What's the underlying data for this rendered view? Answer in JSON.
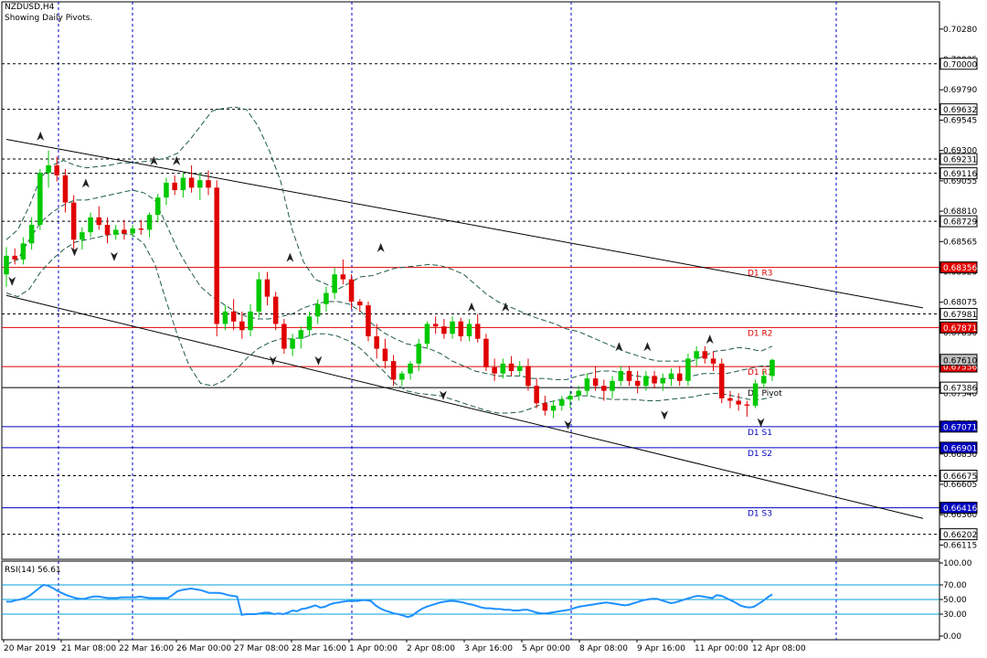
{
  "header": {
    "symbol": "NZDUSD,H4",
    "subtitle": "Showing Daily Pivots."
  },
  "rsi_panel": {
    "label": "RSI(14) 56.61",
    "levels": [
      "100.00",
      "70.00",
      "50.00",
      "30.00",
      "0.00"
    ]
  },
  "chart_data": [
    {
      "type": "candlestick",
      "symbol": "NZDUSD",
      "timeframe": "H4",
      "ylim": [
        0.66,
        0.705
      ],
      "price_ticks": [
        "0.70280",
        "0.70035",
        "0.69790",
        "0.69545",
        "0.69300",
        "0.69055",
        "0.68810",
        "0.68565",
        "0.68320",
        "0.68075",
        "0.67830",
        "0.67585",
        "0.67340",
        "0.67095",
        "0.66850",
        "0.66605",
        "0.66360",
        "0.66115"
      ],
      "time_labels": [
        "20 Mar 2019",
        "21 Mar 08:00",
        "22 Mar 16:00",
        "26 Mar 00:00",
        "27 Mar 08:00",
        "28 Mar 16:00",
        "1 Apr 00:00",
        "2 Apr 08:00",
        "3 Apr 16:00",
        "5 Apr 00:00",
        "8 Apr 08:00",
        "9 Apr 16:00",
        "11 Apr 00:00",
        "12 Apr 08:00"
      ],
      "horizontal_levels": [
        {
          "price": 0.7,
          "label": "0.70000",
          "style": "dashed"
        },
        {
          "price": 0.69632,
          "label": "0.69632",
          "style": "dashed"
        },
        {
          "price": 0.69231,
          "label": "0.69231",
          "style": "dashed"
        },
        {
          "price": 0.69116,
          "label": "0.69116",
          "style": "dashed"
        },
        {
          "price": 0.68729,
          "label": "0.68729",
          "style": "dashed"
        },
        {
          "price": 0.68356,
          "label": "0.68356",
          "style": "pivot",
          "name": "D1 R3",
          "color": "#e00000"
        },
        {
          "price": 0.67981,
          "label": "0.67981",
          "style": "dashed"
        },
        {
          "price": 0.67871,
          "label": "0.67871",
          "style": "pivot",
          "name": "D1 R2",
          "color": "#e00000"
        },
        {
          "price": 0.67556,
          "label": "0.67556",
          "style": "pivot",
          "name": "D1 R1",
          "color": "#e00000"
        },
        {
          "price": 0.67386,
          "label": "0.67386",
          "style": "pivot",
          "name": "D1 Pivot",
          "color": "#000000"
        },
        {
          "price": 0.67071,
          "label": "0.67071",
          "style": "pivot",
          "name": "D1 S1",
          "color": "#0000c0"
        },
        {
          "price": 0.66901,
          "label": "0.66901",
          "style": "pivot",
          "name": "D1 S2",
          "color": "#0000c0"
        },
        {
          "price": 0.66675,
          "label": "0.66675",
          "style": "dashed"
        },
        {
          "price": 0.66416,
          "label": "0.66416",
          "style": "pivot",
          "name": "D1 S3",
          "color": "#0000c0"
        },
        {
          "price": 0.66202,
          "label": "0.66202",
          "style": "dashed"
        }
      ],
      "current_price": {
        "price": 0.6761,
        "label": "0.67610"
      },
      "trend_channel": [
        {
          "x1": 0,
          "y1": 0.6939,
          "x2": 99,
          "y2": 0.6803
        },
        {
          "x1": 0,
          "y1": 0.6813,
          "x2": 99,
          "y2": 0.6633
        }
      ],
      "candles": [
        [
          0.683,
          0.6852,
          0.682,
          0.6845
        ],
        [
          0.6845,
          0.6851,
          0.6838,
          0.6842
        ],
        [
          0.6842,
          0.686,
          0.6838,
          0.6855
        ],
        [
          0.6855,
          0.6876,
          0.685,
          0.687
        ],
        [
          0.687,
          0.6915,
          0.6866,
          0.6912
        ],
        [
          0.6912,
          0.693,
          0.69,
          0.6918
        ],
        [
          0.6918,
          0.6925,
          0.6905,
          0.691
        ],
        [
          0.691,
          0.6915,
          0.688,
          0.6888
        ],
        [
          0.6888,
          0.6894,
          0.685,
          0.6858
        ],
        [
          0.6858,
          0.6868,
          0.685,
          0.6864
        ],
        [
          0.6864,
          0.688,
          0.686,
          0.6876
        ],
        [
          0.6876,
          0.6885,
          0.6866,
          0.687
        ],
        [
          0.687,
          0.6876,
          0.6855,
          0.6862
        ],
        [
          0.6862,
          0.687,
          0.6858,
          0.6866
        ],
        [
          0.6866,
          0.6874,
          0.6858,
          0.6863
        ],
        [
          0.6863,
          0.687,
          0.686,
          0.6867
        ],
        [
          0.6867,
          0.6874,
          0.6862,
          0.6866
        ],
        [
          0.6866,
          0.688,
          0.686,
          0.6878
        ],
        [
          0.6878,
          0.6895,
          0.6872,
          0.6892
        ],
        [
          0.6892,
          0.6908,
          0.6886,
          0.6904
        ],
        [
          0.6904,
          0.691,
          0.6894,
          0.6898
        ],
        [
          0.6898,
          0.6912,
          0.6892,
          0.6908
        ],
        [
          0.6908,
          0.6918,
          0.6896,
          0.69
        ],
        [
          0.69,
          0.6912,
          0.689,
          0.6906
        ],
        [
          0.6906,
          0.6914,
          0.6894,
          0.69
        ],
        [
          0.69,
          0.6906,
          0.678,
          0.679
        ],
        [
          0.679,
          0.6805,
          0.6785,
          0.68
        ],
        [
          0.68,
          0.681,
          0.6785,
          0.6792
        ],
        [
          0.6792,
          0.68,
          0.6778,
          0.6785
        ],
        [
          0.6785,
          0.6806,
          0.678,
          0.68
        ],
        [
          0.68,
          0.6832,
          0.6795,
          0.6826
        ],
        [
          0.6826,
          0.6832,
          0.6805,
          0.6812
        ],
        [
          0.6812,
          0.6816,
          0.6785,
          0.679
        ],
        [
          0.679,
          0.6794,
          0.6766,
          0.677
        ],
        [
          0.677,
          0.6782,
          0.6764,
          0.6778
        ],
        [
          0.6778,
          0.6788,
          0.677,
          0.6785
        ],
        [
          0.6785,
          0.68,
          0.678,
          0.6796
        ],
        [
          0.6796,
          0.681,
          0.679,
          0.6806
        ],
        [
          0.6806,
          0.682,
          0.68,
          0.6815
        ],
        [
          0.6815,
          0.6835,
          0.681,
          0.683
        ],
        [
          0.683,
          0.6842,
          0.6822,
          0.6826
        ],
        [
          0.6826,
          0.683,
          0.6802,
          0.6808
        ],
        [
          0.6808,
          0.681,
          0.68,
          0.6805
        ],
        [
          0.6805,
          0.6808,
          0.6776,
          0.678
        ],
        [
          0.678,
          0.679,
          0.6762,
          0.677
        ],
        [
          0.677,
          0.6778,
          0.6754,
          0.676
        ],
        [
          0.676,
          0.6765,
          0.674,
          0.6745
        ],
        [
          0.6745,
          0.6752,
          0.674,
          0.675
        ],
        [
          0.675,
          0.676,
          0.6745,
          0.6758
        ],
        [
          0.6758,
          0.6778,
          0.6752,
          0.6774
        ],
        [
          0.6774,
          0.6792,
          0.677,
          0.679
        ],
        [
          0.679,
          0.6796,
          0.6782,
          0.6788
        ],
        [
          0.6788,
          0.6794,
          0.6778,
          0.6782
        ],
        [
          0.6782,
          0.6796,
          0.6778,
          0.6792
        ],
        [
          0.6792,
          0.6795,
          0.6776,
          0.678
        ],
        [
          0.678,
          0.6794,
          0.6776,
          0.679
        ],
        [
          0.679,
          0.6798,
          0.6775,
          0.6778
        ],
        [
          0.6778,
          0.6782,
          0.6752,
          0.6755
        ],
        [
          0.6755,
          0.6762,
          0.6744,
          0.675
        ],
        [
          0.675,
          0.6762,
          0.6746,
          0.6758
        ],
        [
          0.6758,
          0.6764,
          0.6748,
          0.6752
        ],
        [
          0.6752,
          0.676,
          0.6748,
          0.6756
        ],
        [
          0.6756,
          0.6762,
          0.6736,
          0.674
        ],
        [
          0.674,
          0.6746,
          0.6722,
          0.6726
        ],
        [
          0.6726,
          0.6732,
          0.6716,
          0.672
        ],
        [
          0.672,
          0.6728,
          0.6714,
          0.6724
        ],
        [
          0.6724,
          0.6732,
          0.672,
          0.6729
        ],
        [
          0.6729,
          0.6736,
          0.6722,
          0.6732
        ],
        [
          0.6732,
          0.674,
          0.6728,
          0.6736
        ],
        [
          0.6736,
          0.675,
          0.6732,
          0.6746
        ],
        [
          0.6746,
          0.6756,
          0.6736,
          0.674
        ],
        [
          0.674,
          0.6745,
          0.6728,
          0.6736
        ],
        [
          0.6736,
          0.6748,
          0.673,
          0.6744
        ],
        [
          0.6744,
          0.6756,
          0.674,
          0.6752
        ],
        [
          0.6752,
          0.6756,
          0.674,
          0.6744
        ],
        [
          0.6744,
          0.6752,
          0.6734,
          0.674
        ],
        [
          0.674,
          0.6752,
          0.6736,
          0.6748
        ],
        [
          0.6748,
          0.6752,
          0.6738,
          0.6742
        ],
        [
          0.6742,
          0.675,
          0.6736,
          0.6746
        ],
        [
          0.6746,
          0.6754,
          0.674,
          0.675
        ],
        [
          0.675,
          0.6756,
          0.674,
          0.6744
        ],
        [
          0.6744,
          0.6766,
          0.674,
          0.6762
        ],
        [
          0.6762,
          0.6772,
          0.6756,
          0.6768
        ],
        [
          0.6768,
          0.6772,
          0.6758,
          0.6762
        ],
        [
          0.6762,
          0.6768,
          0.6752,
          0.6758
        ],
        [
          0.6758,
          0.6762,
          0.6726,
          0.673
        ],
        [
          0.673,
          0.6736,
          0.6722,
          0.6728
        ],
        [
          0.6728,
          0.6734,
          0.672,
          0.6725
        ],
        [
          0.6725,
          0.6728,
          0.6715,
          0.6724
        ],
        [
          0.6724,
          0.6745,
          0.6722,
          0.6742
        ],
        [
          0.6742,
          0.6752,
          0.6738,
          0.6748
        ],
        [
          0.6748,
          0.6762,
          0.6744,
          0.6761
        ]
      ],
      "bands": {
        "upper": [
          0.6858,
          0.6866,
          0.6885,
          0.6908,
          0.6918,
          0.6922,
          0.6918,
          0.6916,
          0.6917,
          0.6918,
          0.692,
          0.692,
          0.6921,
          0.6922,
          0.6924,
          0.6928,
          0.6938,
          0.695,
          0.6962,
          0.6964,
          0.6965,
          0.6963,
          0.695,
          0.693,
          0.6905,
          0.6866,
          0.684,
          0.6826,
          0.6822,
          0.6818,
          0.6823,
          0.6828,
          0.6829,
          0.6832,
          0.6835,
          0.6836,
          0.6837,
          0.6838,
          0.6837,
          0.6834,
          0.683,
          0.6822,
          0.6814,
          0.6808,
          0.6804,
          0.68,
          0.6796,
          0.6793,
          0.679,
          0.6786,
          0.6784,
          0.678,
          0.6776,
          0.6772,
          0.6768,
          0.6765,
          0.6762,
          0.676,
          0.676,
          0.676,
          0.676,
          0.6764,
          0.6768,
          0.6769,
          0.6771,
          0.677,
          0.6768,
          0.6772
        ],
        "middle": [
          0.6838,
          0.6842,
          0.6858,
          0.6872,
          0.688,
          0.6886,
          0.689,
          0.689,
          0.6892,
          0.6894,
          0.6896,
          0.6898,
          0.6896,
          0.689,
          0.687,
          0.685,
          0.6834,
          0.682,
          0.6812,
          0.6806,
          0.68,
          0.6796,
          0.6794,
          0.6794,
          0.6796,
          0.6798,
          0.6803,
          0.6806,
          0.6808,
          0.6808,
          0.6806,
          0.68,
          0.679,
          0.6783,
          0.6778,
          0.6774,
          0.6772,
          0.677,
          0.6766,
          0.676,
          0.6756,
          0.6752,
          0.675,
          0.6748,
          0.6748,
          0.6748,
          0.6746,
          0.6746,
          0.6745,
          0.6745,
          0.6748,
          0.675,
          0.6752,
          0.6752,
          0.675,
          0.6748,
          0.6747,
          0.6746,
          0.6746,
          0.6746,
          0.6748,
          0.675,
          0.675,
          0.675,
          0.6752,
          0.6754,
          0.6756,
          0.6756
        ],
        "lower": [
          0.6815,
          0.6812,
          0.6818,
          0.6832,
          0.6842,
          0.685,
          0.6856,
          0.6858,
          0.686,
          0.6862,
          0.6863,
          0.6862,
          0.6855,
          0.6838,
          0.6808,
          0.678,
          0.6756,
          0.6742,
          0.674,
          0.6744,
          0.6752,
          0.6762,
          0.677,
          0.6775,
          0.6778,
          0.6778,
          0.6779,
          0.6782,
          0.6782,
          0.678,
          0.6776,
          0.677,
          0.6761,
          0.6752,
          0.6742,
          0.6736,
          0.6734,
          0.6733,
          0.6732,
          0.6729,
          0.6726,
          0.6723,
          0.672,
          0.6718,
          0.6718,
          0.6719,
          0.6722,
          0.6726,
          0.6728,
          0.673,
          0.6732,
          0.6732,
          0.673,
          0.6729,
          0.6729,
          0.6729,
          0.6728,
          0.6728,
          0.6729,
          0.673,
          0.6731,
          0.6733,
          0.6734,
          0.6733,
          0.6731,
          0.6729,
          0.6729,
          0.6731
        ]
      },
      "fractals_up": [
        [
          6,
          0.6938
        ],
        [
          14,
          0.69
        ],
        [
          26,
          0.6918
        ],
        [
          30,
          0.6918
        ],
        [
          50,
          0.684
        ],
        [
          66,
          0.6848
        ],
        [
          82,
          0.68
        ],
        [
          88,
          0.68
        ],
        [
          108,
          0.6768
        ],
        [
          113,
          0.6768
        ],
        [
          124,
          0.6774
        ]
      ],
      "fractals_down": [
        [
          1,
          0.6828
        ],
        [
          12,
          0.6852
        ],
        [
          19,
          0.6848
        ],
        [
          47,
          0.6764
        ],
        [
          55,
          0.6764
        ],
        [
          77,
          0.6736
        ],
        [
          99,
          0.6712
        ],
        [
          116,
          0.672
        ],
        [
          133,
          0.6714
        ]
      ]
    },
    {
      "type": "line",
      "name": "RSI(14)",
      "ylim": [
        0,
        100
      ],
      "ticks": [
        100,
        70,
        50,
        30,
        0
      ],
      "values": [
        47,
        47,
        49,
        50,
        52,
        55,
        60,
        65,
        70,
        69,
        66,
        62,
        59,
        56,
        54,
        52,
        51,
        51,
        53,
        54,
        54,
        53,
        52,
        52,
        52,
        53,
        53,
        53,
        53,
        54,
        53,
        52,
        52,
        52,
        52,
        52,
        56,
        61,
        63,
        64,
        65,
        64,
        63,
        61,
        59,
        59,
        59,
        58,
        56,
        55,
        54,
        29,
        30,
        30,
        30,
        31,
        32,
        32,
        30,
        31,
        30,
        32,
        35,
        34,
        37,
        38,
        40,
        42,
        39,
        40,
        43,
        45,
        46,
        47,
        48,
        48,
        48,
        49,
        49,
        48,
        42,
        38,
        35,
        33,
        31,
        30,
        28,
        26,
        28,
        33,
        37,
        40,
        42,
        44,
        46,
        47,
        48,
        48,
        47,
        46,
        44,
        43,
        41,
        39,
        38,
        38,
        37,
        37,
        36,
        36,
        35,
        35,
        36,
        36,
        34,
        32,
        31,
        31,
        32,
        33,
        34,
        35,
        36,
        38,
        40,
        41,
        42,
        43,
        44,
        45,
        46,
        45,
        44,
        43,
        42,
        43,
        45,
        47,
        49,
        50,
        51,
        51,
        49,
        47,
        45,
        46,
        48,
        50,
        52,
        54,
        55,
        54,
        53,
        52,
        56,
        55,
        52,
        49,
        46,
        42,
        40,
        39,
        40,
        44,
        48,
        53,
        57
      ]
    }
  ]
}
